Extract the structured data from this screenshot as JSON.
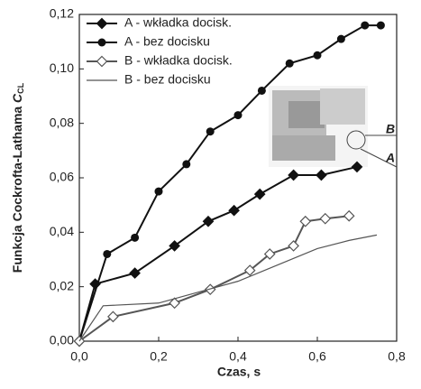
{
  "chart_data": {
    "type": "line",
    "xlabel": "Czas, s",
    "ylabel": "Funkcja Cockrofta-Lathama",
    "ylabel_symbol": "C",
    "ylabel_subscript": "CL",
    "xlim": [
      0,
      0.8
    ],
    "ylim": [
      0,
      0.12
    ],
    "xticks": [
      {
        "value": 0,
        "label": "0,0"
      },
      {
        "value": 0.2,
        "label": "0,2"
      },
      {
        "value": 0.4,
        "label": "0,4"
      },
      {
        "value": 0.6,
        "label": "0,6"
      },
      {
        "value": 0.8,
        "label": "0,8"
      }
    ],
    "yticks": [
      {
        "value": 0,
        "label": "0,00"
      },
      {
        "value": 0.02,
        "label": "0,02"
      },
      {
        "value": 0.04,
        "label": "0,04"
      },
      {
        "value": 0.06,
        "label": "0,06"
      },
      {
        "value": 0.08,
        "label": "0,08"
      },
      {
        "value": 0.1,
        "label": "0,10"
      },
      {
        "value": 0.12,
        "label": "0,12"
      }
    ],
    "legend": "upper left",
    "annotations": [
      "B",
      "A"
    ],
    "series": [
      {
        "name": "A - wkładka docisk.",
        "color": "#111111",
        "marker": "diamond-filled",
        "x": [
          0,
          0.04,
          0.14,
          0.24,
          0.325,
          0.39,
          0.455,
          0.54,
          0.61,
          0.7
        ],
        "values": [
          0,
          0.021,
          0.025,
          0.035,
          0.044,
          0.048,
          0.054,
          0.061,
          0.061,
          0.064
        ]
      },
      {
        "name": "A - bez docisku",
        "color": "#111111",
        "marker": "circle-filled",
        "x": [
          0,
          0.07,
          0.14,
          0.2,
          0.27,
          0.33,
          0.4,
          0.46,
          0.53,
          0.6,
          0.66,
          0.72,
          0.76
        ],
        "values": [
          0,
          0.032,
          0.038,
          0.055,
          0.065,
          0.077,
          0.083,
          0.092,
          0.102,
          0.105,
          0.111,
          0.116,
          0.116
        ]
      },
      {
        "name": "B - wkładka docisk.",
        "color": "#555555",
        "marker": "diamond-open",
        "x": [
          0,
          0.085,
          0.24,
          0.33,
          0.43,
          0.48,
          0.54,
          0.57,
          0.62,
          0.68
        ],
        "values": [
          0,
          0.009,
          0.014,
          0.019,
          0.026,
          0.032,
          0.035,
          0.044,
          0.045,
          0.046
        ]
      },
      {
        "name": "B - bez docisku",
        "color": "#555555",
        "marker": "none",
        "x": [
          0,
          0.06,
          0.2,
          0.3,
          0.4,
          0.5,
          0.6,
          0.68,
          0.75
        ],
        "values": [
          0,
          0.013,
          0.014,
          0.018,
          0.022,
          0.028,
          0.034,
          0.037,
          0.039
        ]
      }
    ]
  }
}
